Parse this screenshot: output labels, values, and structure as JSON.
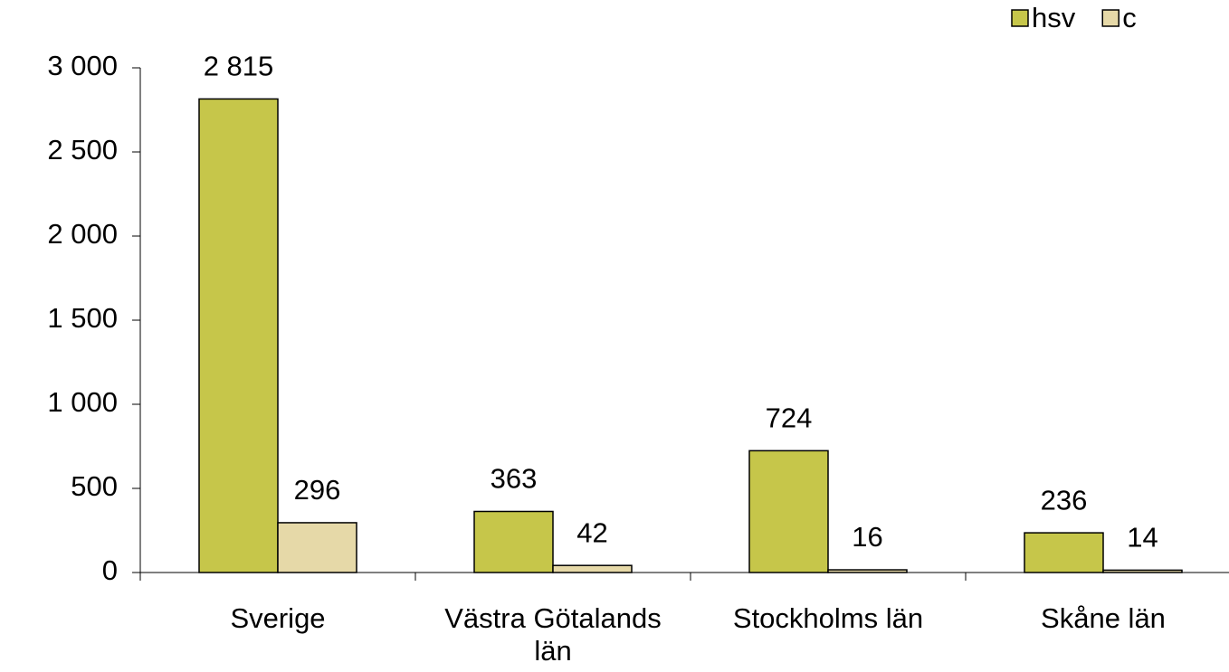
{
  "chart_data": {
    "type": "bar",
    "categories": [
      "Sverige",
      "Västra Götalands län",
      "Stockholms län",
      "Skåne län"
    ],
    "series": [
      {
        "name": "hsv",
        "color": "#c6c64a",
        "values": [
          2815,
          363,
          724,
          236
        ],
        "value_labels": [
          "2 815",
          "363",
          "724",
          "236"
        ]
      },
      {
        "name": "c",
        "color": "#e6d9a8",
        "values": [
          296,
          42,
          16,
          14
        ]
      }
    ],
    "ylim": [
      0,
      3000
    ],
    "yticks": [
      0,
      500,
      {
        "value": 1000,
        "label": "1 000"
      },
      {
        "value": 1500,
        "label": "1 500"
      },
      {
        "value": 2000,
        "label": "2 000"
      },
      {
        "value": 2500,
        "label": "2 500"
      },
      {
        "value": 3000,
        "label": "3 000"
      }
    ],
    "grid": false,
    "legend": "top-right"
  }
}
